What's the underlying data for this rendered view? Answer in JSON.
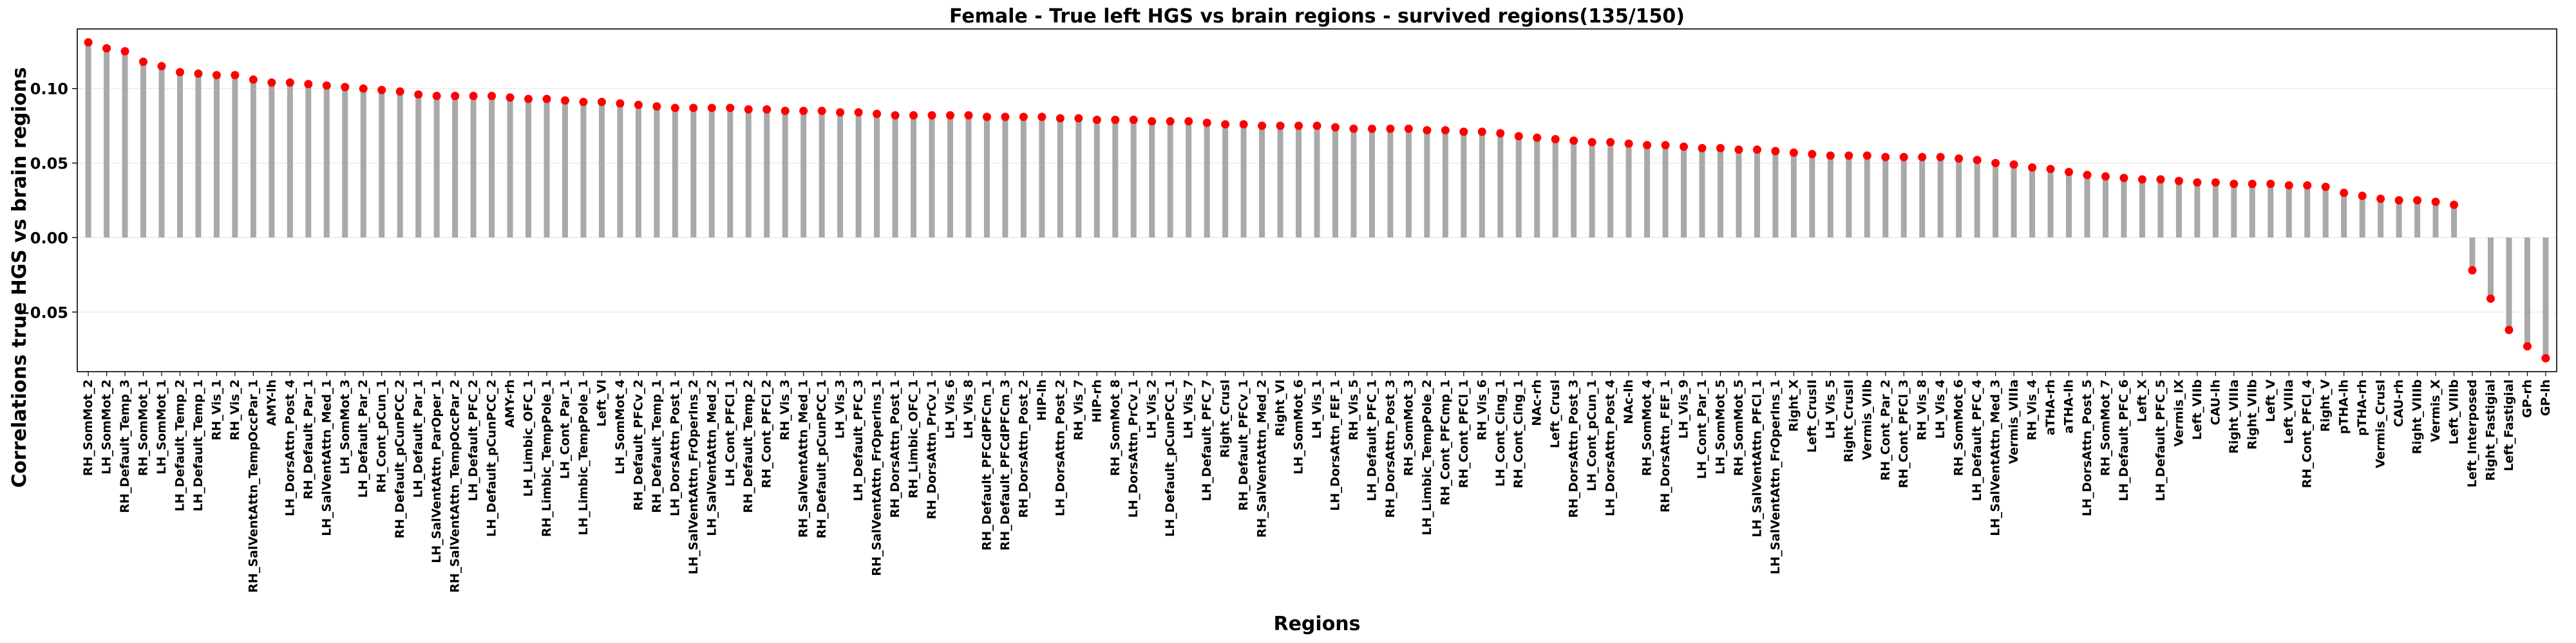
{
  "chart_data": {
    "type": "lollipop",
    "title": "Female - True left HGS vs brain regions - survived regions(135/150)",
    "xlabel": "Regions",
    "ylabel": "Correlations true HGS vs brain regions",
    "ylim": [
      -0.09,
      0.14
    ],
    "yticks": [
      -0.05,
      0.0,
      0.05,
      0.1
    ],
    "ytick_labels": [
      "−0.05",
      "0.00",
      "0.05",
      "0.10"
    ],
    "grid": "horizontal",
    "colors": {
      "stem": "#a9a9a9",
      "marker": "#ff0000",
      "grid": "#e6e6e6",
      "axis": "#000000"
    },
    "categories": [
      "RH_SomMot_2",
      "LH_SomMot_2",
      "RH_Default_Temp_3",
      "RH_SomMot_1",
      "LH_SomMot_1",
      "LH_Default_Temp_2",
      "LH_Default_Temp_1",
      "RH_Vis_1",
      "RH_Vis_2",
      "RH_SalVentAttn_TempOccPar_1",
      "AMY-lh",
      "LH_DorsAttn_Post_4",
      "RH_Default_Par_1",
      "LH_SalVentAttn_Med_1",
      "LH_SomMot_3",
      "LH_Default_Par_2",
      "RH_Cont_pCun_1",
      "RH_Default_pCunPCC_2",
      "LH_Default_Par_1",
      "LH_SalVentAttn_ParOper_1",
      "RH_SalVentAttn_TempOccPar_2",
      "LH_Default_PFC_2",
      "LH_Default_pCunPCC_2",
      "AMY-rh",
      "LH_Limbic_OFC_1",
      "RH_Limbic_TempPole_1",
      "LH_Cont_Par_1",
      "LH_Limbic_TempPole_1",
      "Left_VI",
      "LH_SomMot_4",
      "RH_Default_PFCv_2",
      "RH_Default_Temp_1",
      "LH_DorsAttn_Post_1",
      "LH_SalVentAttn_FrOperIns_2",
      "LH_SalVentAttn_Med_2",
      "LH_Cont_PFCl_1",
      "RH_Default_Temp_2",
      "RH_Cont_PFCl_2",
      "RH_Vis_3",
      "RH_SalVentAttn_Med_1",
      "RH_Default_pCunPCC_1",
      "LH_Vis_3",
      "LH_Default_PFC_3",
      "RH_SalVentAttn_FrOperIns_1",
      "RH_DorsAttn_Post_1",
      "RH_Limbic_OFC_1",
      "RH_DorsAttn_PrCv_1",
      "LH_Vis_6",
      "LH_Vis_8",
      "RH_Default_PFCdPFCm_1",
      "RH_Default_PFCdPFCm_3",
      "RH_DorsAttn_Post_2",
      "HIP-lh",
      "LH_DorsAttn_Post_2",
      "RH_Vis_7",
      "HIP-rh",
      "RH_SomMot_8",
      "LH_DorsAttn_PrCv_1",
      "LH_Vis_2",
      "LH_Default_pCunPCC_1",
      "LH_Vis_7",
      "LH_Default_PFC_7",
      "Right_CrusI",
      "RH_Default_PFCv_1",
      "RH_SalVentAttn_Med_2",
      "Right_VI",
      "LH_SomMot_6",
      "LH_Vis_1",
      "LH_DorsAttn_FEF_1",
      "RH_Vis_5",
      "LH_Default_PFC_1",
      "RH_DorsAttn_Post_3",
      "RH_SomMot_3",
      "LH_Limbic_TempPole_2",
      "RH_Cont_PFCmp_1",
      "RH_Cont_PFCl_1",
      "RH_Vis_6",
      "LH_Cont_Cing_1",
      "RH_Cont_Cing_1",
      "NAc-rh",
      "Left_CrusI",
      "RH_DorsAttn_Post_3",
      "LH_Cont_pCun_1",
      "LH_DorsAttn_Post_4",
      "NAc-lh",
      "RH_SomMot_4",
      "RH_DorsAttn_FEF_1",
      "LH_Vis_9",
      "LH_Cont_Par_1",
      "LH_SomMot_5",
      "RH_SomMot_5",
      "LH_SalVentAttn_PFCl_1",
      "LH_SalVentAttn_FrOperIns_1",
      "Right_X",
      "Left_CrusII",
      "LH_Vis_5",
      "Right_CrusII",
      "Vermis_VIIb",
      "RH_Cont_Par_2",
      "RH_Cont_PFCl_3",
      "RH_Vis_8",
      "LH_Vis_4",
      "RH_SomMot_6",
      "LH_Default_PFC_4",
      "LH_SalVentAttn_Med_3",
      "Vermis_VIIIa",
      "RH_Vis_4",
      "aTHA-rh",
      "aTHA-lh",
      "LH_DorsAttn_Post_5",
      "RH_SomMot_7",
      "LH_Default_PFC_6",
      "Left_X",
      "LH_Default_PFC_5",
      "Vermis_IX",
      "Left_VIIb",
      "CAU-lh",
      "Right_VIIIa",
      "Right_VIIb",
      "Left_V",
      "Left_VIIIa",
      "RH_Cont_PFCl_4",
      "Right_V",
      "pTHA-lh",
      "pTHA-rh",
      "Vermis_CrusI",
      "CAU-rh",
      "Right_VIIIb",
      "Vermis_X",
      "Left_VIIIb",
      "Left_Interposed",
      "Right_Fastigial",
      "Left_Fastigial",
      "GP-rh",
      "GP-lh"
    ],
    "values": [
      0.131,
      0.127,
      0.125,
      0.118,
      0.115,
      0.111,
      0.11,
      0.109,
      0.109,
      0.106,
      0.104,
      0.104,
      0.103,
      0.102,
      0.101,
      0.1,
      0.099,
      0.098,
      0.096,
      0.095,
      0.095,
      0.095,
      0.095,
      0.094,
      0.093,
      0.093,
      0.092,
      0.091,
      0.091,
      0.09,
      0.089,
      0.088,
      0.087,
      0.087,
      0.087,
      0.087,
      0.086,
      0.086,
      0.085,
      0.085,
      0.085,
      0.084,
      0.084,
      0.083,
      0.082,
      0.082,
      0.082,
      0.082,
      0.082,
      0.081,
      0.081,
      0.081,
      0.081,
      0.08,
      0.08,
      0.079,
      0.079,
      0.079,
      0.078,
      0.078,
      0.078,
      0.077,
      0.076,
      0.076,
      0.075,
      0.075,
      0.075,
      0.075,
      0.074,
      0.073,
      0.073,
      0.073,
      0.073,
      0.072,
      0.072,
      0.071,
      0.071,
      0.07,
      0.068,
      0.067,
      0.066,
      0.065,
      0.064,
      0.064,
      0.063,
      0.062,
      0.062,
      0.061,
      0.06,
      0.06,
      0.059,
      0.059,
      0.058,
      0.057,
      0.056,
      0.055,
      0.055,
      0.055,
      0.054,
      0.054,
      0.054,
      0.054,
      0.053,
      0.052,
      0.05,
      0.049,
      0.047,
      0.046,
      0.044,
      0.042,
      0.041,
      0.04,
      0.039,
      0.039,
      0.038,
      0.037,
      0.037,
      0.036,
      0.036,
      0.036,
      0.035,
      0.035,
      0.034,
      0.03,
      0.028,
      0.026,
      0.025,
      0.025,
      0.024,
      0.022,
      -0.022,
      -0.041,
      -0.062,
      -0.073,
      -0.081
    ]
  }
}
